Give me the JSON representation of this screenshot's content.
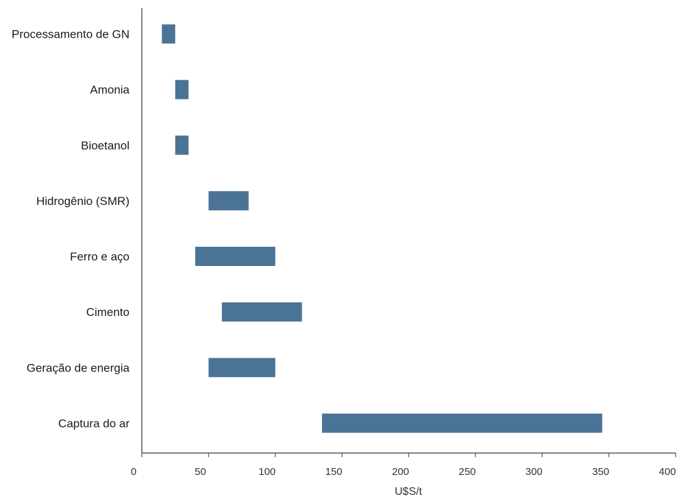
{
  "chart_data": {
    "type": "bar",
    "orientation": "horizontal",
    "subtype": "floating-range",
    "categories": [
      "Processamento de GN",
      "Amonia",
      "Bioetanol",
      "Hidrogênio (SMR)",
      "Ferro e aço",
      "Cimento",
      "Geração de energia",
      "Captura do ar"
    ],
    "ranges": [
      [
        15,
        25
      ],
      [
        25,
        35
      ],
      [
        25,
        35
      ],
      [
        50,
        80
      ],
      [
        40,
        100
      ],
      [
        60,
        120
      ],
      [
        50,
        100
      ],
      [
        135,
        345
      ]
    ],
    "xlabel": "U$S/t",
    "ylabel": "",
    "xlim": [
      0,
      400
    ],
    "xticks": [
      "0",
      "50",
      "100",
      "150",
      "200",
      "250",
      "300",
      "350",
      "400"
    ],
    "grid": false,
    "legend": "none",
    "bar_color": "#4a7396"
  }
}
